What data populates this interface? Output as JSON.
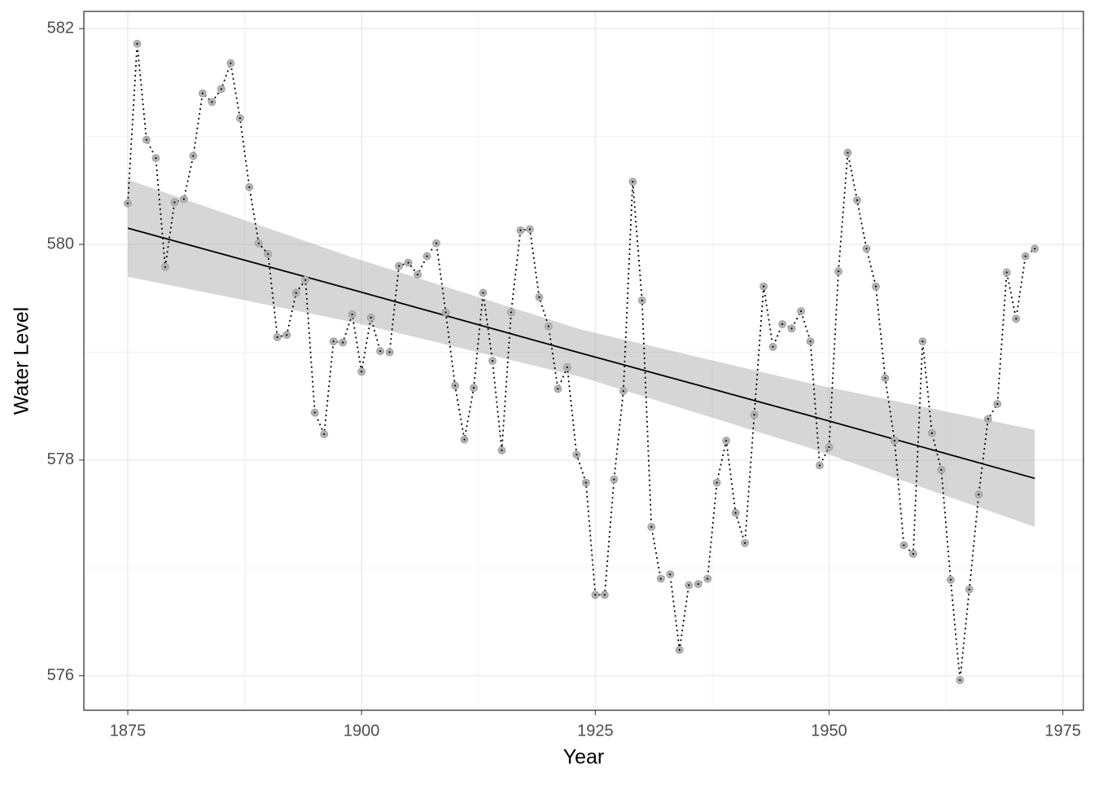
{
  "chart_data": {
    "type": "line",
    "x_label": "Year",
    "y_label": "Water Level",
    "x": [
      1875,
      1876,
      1877,
      1878,
      1879,
      1880,
      1881,
      1882,
      1883,
      1884,
      1885,
      1886,
      1887,
      1888,
      1889,
      1890,
      1891,
      1892,
      1893,
      1894,
      1895,
      1896,
      1897,
      1898,
      1899,
      1900,
      1901,
      1902,
      1903,
      1904,
      1905,
      1906,
      1907,
      1908,
      1909,
      1910,
      1911,
      1912,
      1913,
      1914,
      1915,
      1916,
      1917,
      1918,
      1919,
      1920,
      1921,
      1922,
      1923,
      1924,
      1925,
      1926,
      1927,
      1928,
      1929,
      1930,
      1931,
      1932,
      1933,
      1934,
      1935,
      1936,
      1937,
      1938,
      1939,
      1940,
      1941,
      1942,
      1943,
      1944,
      1945,
      1946,
      1947,
      1948,
      1949,
      1950,
      1951,
      1952,
      1953,
      1954,
      1955,
      1956,
      1957,
      1958,
      1959,
      1960,
      1961,
      1962,
      1963,
      1964,
      1965,
      1966,
      1967,
      1968,
      1969,
      1970,
      1971,
      1972
    ],
    "series": [
      {
        "color": "#000000",
        "values": [
          580.38,
          581.86,
          580.97,
          580.8,
          579.79,
          580.39,
          580.42,
          580.82,
          581.4,
          581.32,
          581.44,
          581.68,
          581.17,
          580.53,
          580.01,
          579.91,
          579.14,
          579.16,
          579.55,
          579.67,
          578.44,
          578.24,
          579.1,
          579.09,
          579.35,
          578.82,
          579.32,
          579.01,
          579.0,
          579.8,
          579.83,
          579.72,
          579.89,
          580.01,
          579.37,
          578.69,
          578.19,
          578.67,
          579.55,
          578.92,
          578.09,
          579.37,
          580.13,
          580.14,
          579.51,
          579.24,
          578.66,
          578.86,
          578.05,
          577.79,
          576.75,
          576.75,
          577.82,
          578.64,
          580.58,
          579.48,
          577.38,
          576.9,
          576.94,
          576.24,
          576.84,
          576.85,
          576.9,
          577.79,
          578.18,
          577.51,
          577.23,
          578.42,
          579.61,
          579.05,
          579.26,
          579.22,
          579.38,
          579.1,
          577.95,
          578.12,
          579.75,
          580.85,
          580.41,
          579.96,
          579.61,
          578.76,
          578.18,
          577.21,
          577.13,
          579.1,
          578.25,
          577.91,
          576.89,
          575.96,
          576.8,
          577.68,
          578.38,
          578.52,
          579.74,
          579.31,
          579.89,
          579.96
        ]
      }
    ],
    "fit": {
      "x": [
        1875,
        1899,
        1923.5,
        1948,
        1972
      ],
      "values": [
        580.15,
        579.58,
        578.99,
        578.41,
        577.83
      ],
      "lower": [
        579.7,
        579.28,
        578.77,
        578.11,
        577.38
      ],
      "upper": [
        580.6,
        579.88,
        579.21,
        578.71,
        578.28
      ]
    },
    "xlim": [
      1870.3,
      1977.2
    ],
    "ylim": [
      575.68,
      582.16
    ],
    "xticks": [
      1875,
      1900,
      1925,
      1950,
      1975
    ],
    "yticks": [
      576,
      578,
      580,
      582
    ],
    "grid": true
  }
}
